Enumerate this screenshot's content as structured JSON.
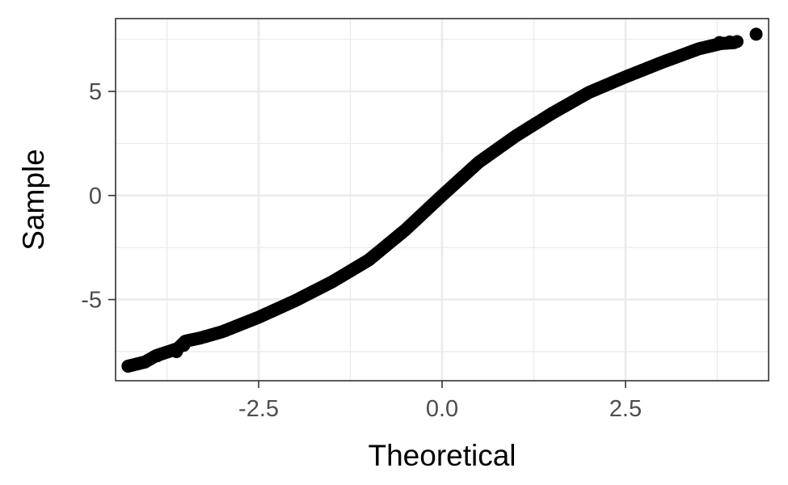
{
  "chart_data": {
    "type": "scatter",
    "subtype": "qq-plot",
    "title": "",
    "xlabel": "Theoretical",
    "ylabel": "Sample",
    "xlim": [
      -4.45,
      4.45
    ],
    "ylim": [
      -8.9,
      8.5
    ],
    "x_ticks": [
      {
        "value": -2.5,
        "label": "-2.5"
      },
      {
        "value": 0.0,
        "label": "0.0"
      },
      {
        "value": 2.5,
        "label": "2.5"
      }
    ],
    "y_ticks": [
      {
        "value": -5,
        "label": "-5"
      },
      {
        "value": 0,
        "label": "0"
      },
      {
        "value": 5,
        "label": "5"
      }
    ],
    "x_minor_grid": [
      -3.75,
      -1.25,
      1.25,
      3.75
    ],
    "y_minor_grid": [
      -7.5,
      -2.5,
      2.5,
      7.5
    ],
    "grid": true,
    "legend": "none",
    "point_color": "#000000",
    "curve_points": [
      [
        -4.28,
        -8.2
      ],
      [
        -4.05,
        -8.0
      ],
      [
        -3.9,
        -7.7
      ],
      [
        -3.6,
        -7.35
      ],
      [
        -3.5,
        -7.0
      ],
      [
        -3.3,
        -6.85
      ],
      [
        -3.0,
        -6.55
      ],
      [
        -2.5,
        -5.85
      ],
      [
        -2.0,
        -5.05
      ],
      [
        -1.5,
        -4.15
      ],
      [
        -1.0,
        -3.1
      ],
      [
        -0.5,
        -1.65
      ],
      [
        0.0,
        0.0
      ],
      [
        0.5,
        1.6
      ],
      [
        1.0,
        2.85
      ],
      [
        1.5,
        3.95
      ],
      [
        2.0,
        4.95
      ],
      [
        2.5,
        5.7
      ],
      [
        3.0,
        6.4
      ],
      [
        3.5,
        7.05
      ],
      [
        3.8,
        7.3
      ],
      [
        4.0,
        7.35
      ]
    ],
    "extreme_points": [
      [
        -4.28,
        -8.2
      ],
      [
        -4.05,
        -8.0
      ],
      [
        -3.88,
        -7.7
      ],
      [
        -3.62,
        -7.5
      ],
      [
        -3.52,
        -7.2
      ],
      [
        3.78,
        7.35
      ],
      [
        3.92,
        7.38
      ],
      [
        4.02,
        7.4
      ],
      [
        4.28,
        7.75
      ]
    ]
  }
}
